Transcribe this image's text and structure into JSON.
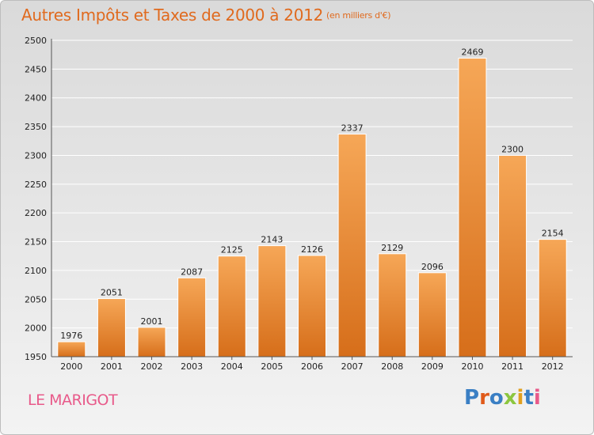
{
  "title": "Autres Impôts et Taxes de 2000 à 2012",
  "unit_note": "(en milliers d'€)",
  "place_name": "LE MARIGOT",
  "brand": {
    "logo_text": "Proxiti"
  },
  "colors": {
    "title": "#e06a1e",
    "bar_light": "#f6a757",
    "bar_dark": "#d66e1a",
    "place_name": "#e85a8a"
  },
  "chart_data": {
    "type": "bar",
    "categories": [
      "2000",
      "2001",
      "2002",
      "2003",
      "2004",
      "2005",
      "2006",
      "2007",
      "2008",
      "2009",
      "2010",
      "2011",
      "2012"
    ],
    "values": [
      1976,
      2051,
      2001,
      2087,
      2125,
      2143,
      2126,
      2337,
      2129,
      2096,
      2469,
      2300,
      2154
    ],
    "ylim": [
      1950,
      2500
    ],
    "yticks": [
      1950,
      2000,
      2050,
      2100,
      2150,
      2200,
      2250,
      2300,
      2350,
      2400,
      2450,
      2500
    ],
    "grid": true,
    "data_labels": true
  }
}
